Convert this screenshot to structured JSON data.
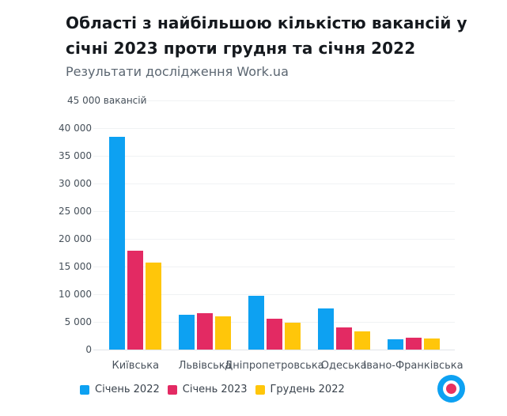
{
  "header": {
    "title": "Області з найбільшою кількістю вакансій у січні 2023 проти грудня та січня 2022",
    "title_lines": [
      "Області з найбільшою кількістю вакансій у",
      "січні 2023 проти грудня та січня 2022"
    ],
    "subtitle": "Результати дослідження Work.ua"
  },
  "chart_data": {
    "type": "bar",
    "title": "Області з найбільшою кількістю вакансій у січні 2023 проти грудня та січня 2022",
    "subtitle": "Результати дослідження Work.ua",
    "unit_label": "вакансій",
    "categories": [
      "Київська",
      "Львівська",
      "Дніпропетровська",
      "Одеська",
      "Івано-Франківська"
    ],
    "series": [
      {
        "name": "Січень 2022",
        "color": "#0da1f2",
        "values": [
          38400,
          6300,
          9700,
          7400,
          1900
        ]
      },
      {
        "name": "Січень 2023",
        "color": "#e32a63",
        "values": [
          17900,
          6600,
          5600,
          4000,
          2100
        ]
      },
      {
        "name": "Грудень 2022",
        "color": "#ffc60a",
        "values": [
          15700,
          6000,
          4900,
          3300,
          2000
        ]
      }
    ],
    "ylim": [
      0,
      45000
    ],
    "ytick_step": 5000,
    "ytick_labels": [
      "0",
      "5 000",
      "10 000",
      "15 000",
      "20 000",
      "25 000",
      "30 000",
      "35 000",
      "40 000",
      "45 000 вакансій"
    ],
    "grid": true,
    "legend_position": "bottom"
  },
  "logo": {
    "name": "Work.ua",
    "outer_color": "#0da1f2",
    "inner_color": "#e8315f"
  }
}
